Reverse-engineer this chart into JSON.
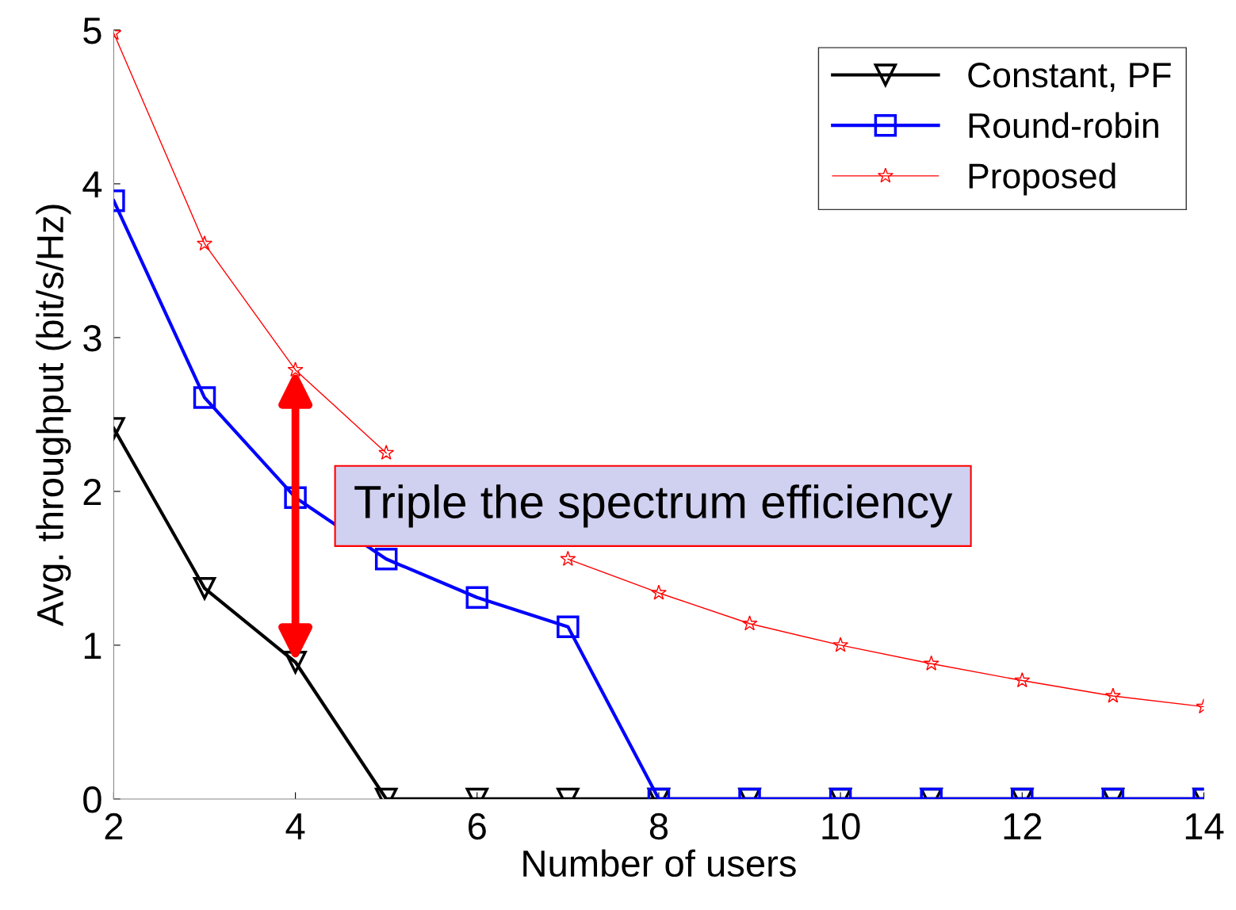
{
  "chart_data": {
    "type": "line",
    "xlabel": "Number of users",
    "ylabel": "Avg. throughput (bit/s/Hz)",
    "x": [
      2,
      3,
      4,
      5,
      6,
      7,
      8,
      9,
      10,
      11,
      12,
      13,
      14
    ],
    "series": [
      {
        "name": "Constant, PF",
        "color": "#000000",
        "marker": "triangle",
        "values": [
          2.41,
          1.37,
          0.89,
          0,
          0,
          0,
          0,
          0,
          0,
          0,
          0,
          0,
          0
        ]
      },
      {
        "name": "Round-robin",
        "color": "#0000ff",
        "marker": "square",
        "values": [
          3.89,
          2.61,
          1.96,
          1.56,
          1.31,
          1.12,
          0,
          0,
          0,
          0,
          0,
          0,
          0
        ]
      },
      {
        "name": "Proposed",
        "color": "#ff0000",
        "marker": "star",
        "values": [
          4.98,
          3.61,
          2.79,
          2.25,
          null,
          1.56,
          1.34,
          1.14,
          1.0,
          0.88,
          0.77,
          0.67,
          0.6
        ]
      }
    ],
    "xlim": [
      2,
      14
    ],
    "xticks": [
      2,
      4,
      6,
      8,
      10,
      12,
      14
    ],
    "ylim": [
      0,
      5
    ],
    "yticks": [
      0,
      1,
      2,
      3,
      4,
      5
    ],
    "grid": false,
    "legend": "top right",
    "line_style": "solid",
    "annotations": [
      "Triple the spectrum efficiency"
    ]
  }
}
